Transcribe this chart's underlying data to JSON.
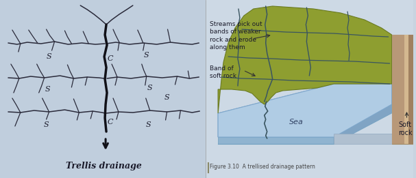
{
  "bg_color": "#c8d4e0",
  "left_bg": "#c0cedd",
  "right_bg": "#cdd9e5",
  "title_left": "Trellis drainage",
  "annotation_streams": "Streams pick out\nbands of weaker\nrock and erode\nalong them",
  "annotation_band": "Band of\nsoft rock",
  "annotation_sea": "Sea",
  "annotation_soft_rock": "Soft\nrock",
  "figure_caption": "Figure 3.10  A trellised drainage pattern",
  "stream_color": "#2a2a3a",
  "stream_thick": "#111118",
  "land_color": "#8e9e30",
  "land_shadow": "#7a8a20",
  "sea_top": "#b0cce4",
  "sea_side": "#90b4d0",
  "sea_bottom": "#80a4c4",
  "rock_colors": [
    "#c8b090",
    "#b09870",
    "#d4bc98",
    "#a08868",
    "#cdb494"
  ],
  "text_color": "#1a1a2a",
  "caption_color": "#444444"
}
